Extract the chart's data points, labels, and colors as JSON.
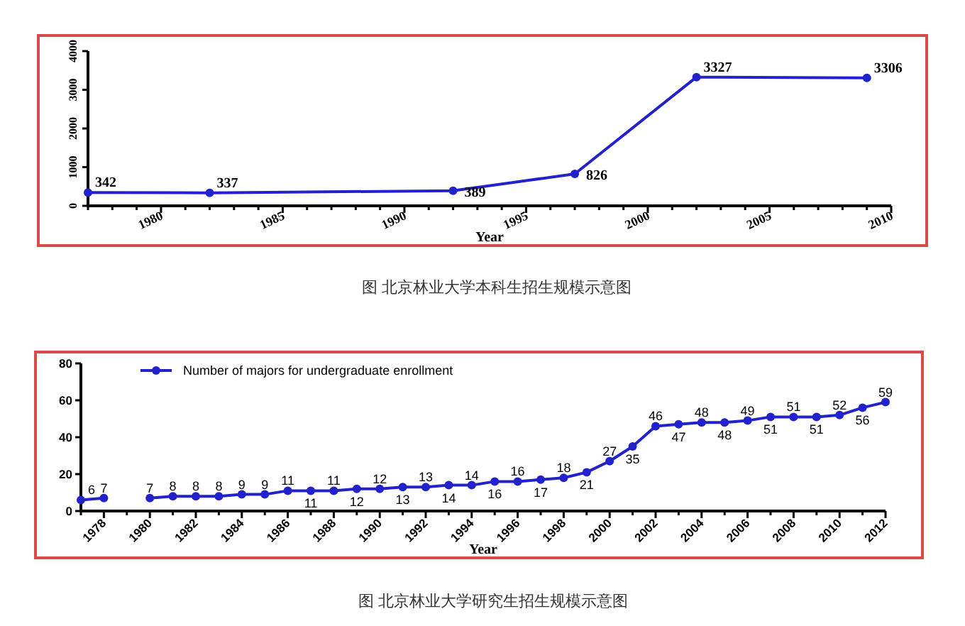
{
  "chart_data": [
    {
      "type": "line",
      "title": "图 北京林业大学本科生招生规模示意图",
      "xlabel": "Year",
      "x": [
        1977,
        1982,
        1992,
        1997,
        2002,
        2009
      ],
      "values": [
        342,
        337,
        389,
        826,
        3327,
        3306
      ],
      "color": "#2222cc",
      "xlim": [
        1977,
        2010
      ],
      "xticks": [
        {
          "value": 1977,
          "label": null
        },
        {
          "value": 1978,
          "label": null
        },
        {
          "value": 1979,
          "label": null
        },
        1980,
        {
          "value": 1981,
          "label": null
        },
        {
          "value": 1982,
          "label": null
        },
        {
          "value": 1983,
          "label": null
        },
        {
          "value": 1984,
          "label": null
        },
        1985,
        {
          "value": 1986,
          "label": null
        },
        {
          "value": 1987,
          "label": null
        },
        {
          "value": 1988,
          "label": null
        },
        {
          "value": 1989,
          "label": null
        },
        1990,
        {
          "value": 1991,
          "label": null
        },
        {
          "value": 1992,
          "label": null
        },
        {
          "value": 1993,
          "label": null
        },
        {
          "value": 1994,
          "label": null
        },
        1995,
        {
          "value": 1996,
          "label": null
        },
        {
          "value": 1997,
          "label": null
        },
        {
          "value": 1998,
          "label": null
        },
        {
          "value": 1999,
          "label": null
        },
        2000,
        {
          "value": 2001,
          "label": null
        },
        {
          "value": 2002,
          "label": null
        },
        {
          "value": 2003,
          "label": null
        },
        {
          "value": 2004,
          "label": null
        },
        2005,
        {
          "value": 2006,
          "label": null
        },
        {
          "value": 2007,
          "label": null
        },
        {
          "value": 2008,
          "label": null
        },
        {
          "value": 2009,
          "label": null
        },
        2010
      ],
      "ylim": [
        0,
        4000
      ],
      "yticks": [
        0,
        1000,
        2000,
        3000,
        4000
      ],
      "data_labels": true,
      "marker": "circle",
      "grid": false,
      "legend": false
    },
    {
      "type": "line",
      "title": "图 北京林业大学研究生招生规模示意图",
      "xlabel": "Year",
      "x": [
        1977,
        1978,
        1979,
        1980,
        1981,
        1982,
        1983,
        1984,
        1985,
        1986,
        1987,
        1988,
        1989,
        1990,
        1991,
        1992,
        1993,
        1994,
        1995,
        1996,
        1997,
        1998,
        1999,
        2000,
        2001,
        2002,
        2003,
        2004,
        2005,
        2006,
        2007,
        2008,
        2009,
        2010,
        2011,
        2012
      ],
      "series": [
        {
          "name": "Number of majors for undergraduate enrollment",
          "color": "#2222cc",
          "values": [
            6,
            7,
            null,
            7,
            8,
            8,
            8,
            9,
            9,
            11,
            11,
            11,
            12,
            12,
            13,
            13,
            14,
            14,
            16,
            16,
            17,
            18,
            21,
            27,
            35,
            46,
            47,
            48,
            48,
            49,
            51,
            51,
            51,
            52,
            56,
            59
          ]
        }
      ],
      "xlim": [
        1977,
        2012
      ],
      "xticks": [
        {
          "value": 1977,
          "label": null
        },
        1978,
        {
          "value": 1979,
          "label": null
        },
        1980,
        {
          "value": 1981,
          "label": null
        },
        1982,
        {
          "value": 1983,
          "label": null
        },
        1984,
        {
          "value": 1985,
          "label": null
        },
        1986,
        {
          "value": 1987,
          "label": null
        },
        1988,
        {
          "value": 1989,
          "label": null
        },
        1990,
        {
          "value": 1991,
          "label": null
        },
        1992,
        {
          "value": 1993,
          "label": null
        },
        1994,
        {
          "value": 1995,
          "label": null
        },
        1996,
        {
          "value": 1997,
          "label": null
        },
        1998,
        {
          "value": 1999,
          "label": null
        },
        2000,
        {
          "value": 2001,
          "label": null
        },
        2002,
        {
          "value": 2003,
          "label": null
        },
        2004,
        {
          "value": 2005,
          "label": null
        },
        2006,
        {
          "value": 2007,
          "label": null
        },
        2008,
        {
          "value": 2009,
          "label": null
        },
        2010,
        {
          "value": 2011,
          "label": null
        },
        2012
      ],
      "ylim": [
        0,
        80
      ],
      "yticks": [
        0,
        20,
        40,
        60,
        80
      ],
      "data_labels": true,
      "marker": "circle",
      "grid": false,
      "legend": "top left"
    }
  ]
}
